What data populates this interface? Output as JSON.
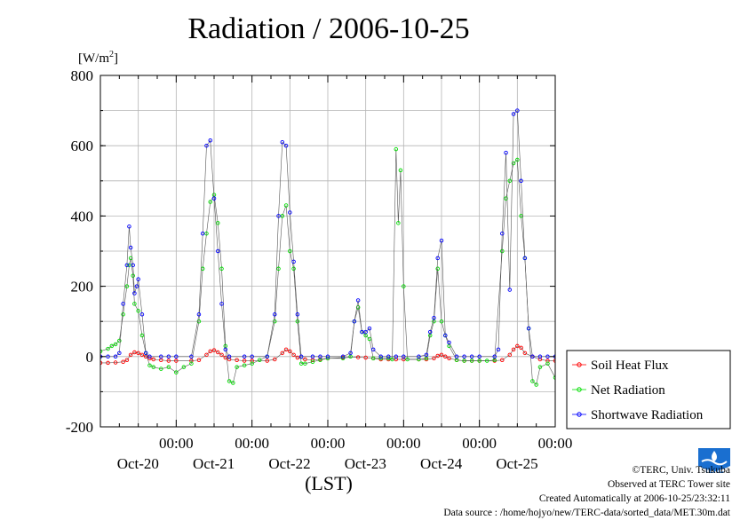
{
  "chart_data": {
    "type": "line",
    "title": "Radiation / 2006-10-25",
    "ylabel": "[W/m2]",
    "ylabel_base": "[W/m",
    "ylabel_sup": "2",
    "ylabel_close": "]",
    "xlabel": "(LST)",
    "ylim": [
      -200,
      800
    ],
    "y_ticks": [
      -200,
      0,
      200,
      400,
      600,
      800
    ],
    "x_range_days": [
      0,
      6
    ],
    "x_ticks": [
      {
        "time": "00:00",
        "date": "Oct-20",
        "day": 1
      },
      {
        "time": "00:00",
        "date": "Oct-21",
        "day": 2
      },
      {
        "time": "00:00",
        "date": "Oct-22",
        "day": 3
      },
      {
        "time": "00:00",
        "date": "Oct-23",
        "day": 4
      },
      {
        "time": "00:00",
        "date": "Oct-24",
        "day": 5
      },
      {
        "time": "00:00",
        "date": "Oct-25",
        "day": 6
      }
    ],
    "grid": true,
    "legend_position": "right",
    "series": [
      {
        "name": "Soil Heat Flux",
        "color": "#ff0000",
        "points": [
          [
            0.0,
            -18
          ],
          [
            0.1,
            -18
          ],
          [
            0.2,
            -17
          ],
          [
            0.3,
            -15
          ],
          [
            0.35,
            -10
          ],
          [
            0.4,
            5
          ],
          [
            0.45,
            12
          ],
          [
            0.5,
            10
          ],
          [
            0.55,
            5
          ],
          [
            0.6,
            0
          ],
          [
            0.65,
            -5
          ],
          [
            0.7,
            -8
          ],
          [
            0.8,
            -10
          ],
          [
            0.9,
            -12
          ],
          [
            1.0,
            -12
          ],
          [
            1.2,
            -12
          ],
          [
            1.3,
            -10
          ],
          [
            1.4,
            5
          ],
          [
            1.45,
            15
          ],
          [
            1.5,
            18
          ],
          [
            1.55,
            12
          ],
          [
            1.6,
            5
          ],
          [
            1.65,
            -3
          ],
          [
            1.7,
            -8
          ],
          [
            1.8,
            -10
          ],
          [
            1.9,
            -12
          ],
          [
            2.0,
            -12
          ],
          [
            2.2,
            -12
          ],
          [
            2.3,
            -8
          ],
          [
            2.4,
            10
          ],
          [
            2.45,
            20
          ],
          [
            2.5,
            15
          ],
          [
            2.55,
            5
          ],
          [
            2.6,
            -3
          ],
          [
            2.7,
            -8
          ],
          [
            2.8,
            -10
          ],
          [
            2.9,
            -8
          ],
          [
            3.0,
            -5
          ],
          [
            3.2,
            -3
          ],
          [
            3.4,
            -2
          ],
          [
            3.5,
            -3
          ],
          [
            3.6,
            -5
          ],
          [
            3.7,
            -8
          ],
          [
            3.8,
            -8
          ],
          [
            3.9,
            -8
          ],
          [
            4.0,
            -8
          ],
          [
            4.2,
            -8
          ],
          [
            4.3,
            -8
          ],
          [
            4.4,
            -5
          ],
          [
            4.45,
            2
          ],
          [
            4.5,
            5
          ],
          [
            4.55,
            0
          ],
          [
            4.6,
            -5
          ],
          [
            4.7,
            -10
          ],
          [
            4.8,
            -12
          ],
          [
            4.9,
            -12
          ],
          [
            5.0,
            -12
          ],
          [
            5.2,
            -12
          ],
          [
            5.3,
            -10
          ],
          [
            5.4,
            5
          ],
          [
            5.45,
            20
          ],
          [
            5.5,
            30
          ],
          [
            5.55,
            25
          ],
          [
            5.6,
            10
          ],
          [
            5.7,
            0
          ],
          [
            5.8,
            -8
          ],
          [
            5.9,
            -12
          ],
          [
            6.0,
            -12
          ]
        ]
      },
      {
        "name": "Net Radiation",
        "color": "#00dd00",
        "points": [
          [
            0.0,
            15
          ],
          [
            0.1,
            22
          ],
          [
            0.15,
            30
          ],
          [
            0.2,
            35
          ],
          [
            0.25,
            45
          ],
          [
            0.3,
            120
          ],
          [
            0.35,
            200
          ],
          [
            0.38,
            260
          ],
          [
            0.4,
            280
          ],
          [
            0.43,
            230
          ],
          [
            0.45,
            150
          ],
          [
            0.5,
            130
          ],
          [
            0.55,
            60
          ],
          [
            0.6,
            10
          ],
          [
            0.65,
            -25
          ],
          [
            0.7,
            -30
          ],
          [
            0.8,
            -35
          ],
          [
            0.9,
            -30
          ],
          [
            1.0,
            -45
          ],
          [
            1.1,
            -30
          ],
          [
            1.2,
            -20
          ],
          [
            1.3,
            100
          ],
          [
            1.35,
            250
          ],
          [
            1.4,
            350
          ],
          [
            1.45,
            440
          ],
          [
            1.5,
            460
          ],
          [
            1.55,
            380
          ],
          [
            1.6,
            250
          ],
          [
            1.65,
            30
          ],
          [
            1.7,
            -70
          ],
          [
            1.75,
            -75
          ],
          [
            1.8,
            -30
          ],
          [
            1.9,
            -25
          ],
          [
            2.0,
            -20
          ],
          [
            2.1,
            -10
          ],
          [
            2.2,
            0
          ],
          [
            2.3,
            100
          ],
          [
            2.35,
            250
          ],
          [
            2.4,
            400
          ],
          [
            2.45,
            430
          ],
          [
            2.5,
            300
          ],
          [
            2.55,
            250
          ],
          [
            2.6,
            100
          ],
          [
            2.65,
            -20
          ],
          [
            2.7,
            -20
          ],
          [
            2.8,
            -15
          ],
          [
            2.9,
            -10
          ],
          [
            3.0,
            -5
          ],
          [
            3.2,
            -5
          ],
          [
            3.3,
            0
          ],
          [
            3.35,
            100
          ],
          [
            3.4,
            140
          ],
          [
            3.45,
            70
          ],
          [
            3.5,
            60
          ],
          [
            3.55,
            50
          ],
          [
            3.6,
            -5
          ],
          [
            3.7,
            -5
          ],
          [
            3.8,
            -5
          ],
          [
            3.85,
            -8
          ],
          [
            3.9,
            590
          ],
          [
            3.93,
            380
          ],
          [
            3.96,
            530
          ],
          [
            4.0,
            200
          ],
          [
            4.05,
            -8
          ],
          [
            4.2,
            -8
          ],
          [
            4.3,
            -5
          ],
          [
            4.35,
            60
          ],
          [
            4.4,
            100
          ],
          [
            4.45,
            250
          ],
          [
            4.5,
            100
          ],
          [
            4.55,
            60
          ],
          [
            4.6,
            30
          ],
          [
            4.7,
            -10
          ],
          [
            4.8,
            -12
          ],
          [
            4.9,
            -12
          ],
          [
            5.0,
            -12
          ],
          [
            5.1,
            -12
          ],
          [
            5.2,
            -10
          ],
          [
            5.3,
            300
          ],
          [
            5.35,
            450
          ],
          [
            5.4,
            500
          ],
          [
            5.45,
            550
          ],
          [
            5.5,
            560
          ],
          [
            5.55,
            400
          ],
          [
            5.6,
            280
          ],
          [
            5.65,
            80
          ],
          [
            5.7,
            -70
          ],
          [
            5.75,
            -80
          ],
          [
            5.8,
            -30
          ],
          [
            5.9,
            -20
          ],
          [
            6.0,
            -60
          ]
        ]
      },
      {
        "name": "Shortwave Radiation",
        "color": "#0000ff",
        "points": [
          [
            0.0,
            0
          ],
          [
            0.1,
            0
          ],
          [
            0.2,
            0
          ],
          [
            0.25,
            10
          ],
          [
            0.3,
            150
          ],
          [
            0.35,
            260
          ],
          [
            0.38,
            370
          ],
          [
            0.4,
            310
          ],
          [
            0.43,
            260
          ],
          [
            0.45,
            180
          ],
          [
            0.48,
            200
          ],
          [
            0.5,
            220
          ],
          [
            0.55,
            120
          ],
          [
            0.6,
            10
          ],
          [
            0.65,
            0
          ],
          [
            0.8,
            0
          ],
          [
            0.9,
            0
          ],
          [
            1.0,
            0
          ],
          [
            1.2,
            0
          ],
          [
            1.3,
            120
          ],
          [
            1.35,
            350
          ],
          [
            1.4,
            600
          ],
          [
            1.45,
            615
          ],
          [
            1.5,
            450
          ],
          [
            1.55,
            300
          ],
          [
            1.6,
            150
          ],
          [
            1.65,
            20
          ],
          [
            1.7,
            0
          ],
          [
            1.9,
            0
          ],
          [
            2.0,
            0
          ],
          [
            2.2,
            0
          ],
          [
            2.3,
            120
          ],
          [
            2.35,
            400
          ],
          [
            2.4,
            610
          ],
          [
            2.45,
            600
          ],
          [
            2.5,
            410
          ],
          [
            2.55,
            270
          ],
          [
            2.6,
            120
          ],
          [
            2.65,
            0
          ],
          [
            2.8,
            0
          ],
          [
            2.9,
            0
          ],
          [
            3.0,
            0
          ],
          [
            3.2,
            0
          ],
          [
            3.3,
            10
          ],
          [
            3.35,
            100
          ],
          [
            3.4,
            160
          ],
          [
            3.45,
            70
          ],
          [
            3.5,
            70
          ],
          [
            3.55,
            80
          ],
          [
            3.6,
            20
          ],
          [
            3.7,
            0
          ],
          [
            3.8,
            0
          ],
          [
            3.9,
            0
          ],
          [
            4.0,
            0
          ],
          [
            4.2,
            0
          ],
          [
            4.3,
            5
          ],
          [
            4.35,
            70
          ],
          [
            4.4,
            110
          ],
          [
            4.45,
            280
          ],
          [
            4.5,
            330
          ],
          [
            4.55,
            60
          ],
          [
            4.6,
            40
          ],
          [
            4.7,
            0
          ],
          [
            4.8,
            0
          ],
          [
            4.9,
            0
          ],
          [
            5.0,
            0
          ],
          [
            5.2,
            0
          ],
          [
            5.25,
            20
          ],
          [
            5.3,
            350
          ],
          [
            5.35,
            580
          ],
          [
            5.4,
            190
          ],
          [
            5.45,
            690
          ],
          [
            5.5,
            700
          ],
          [
            5.55,
            500
          ],
          [
            5.6,
            280
          ],
          [
            5.65,
            80
          ],
          [
            5.7,
            0
          ],
          [
            5.8,
            0
          ],
          [
            5.9,
            0
          ],
          [
            6.0,
            0
          ]
        ]
      }
    ]
  },
  "credits": {
    "line1": "©TERC, Univ. Tsukuba",
    "line2": "Observed at TERC Tower site",
    "line3": "Created Automatically at 2006-10-25/23:32:11",
    "line4": "Data source : /home/hojyo/new/TERC-data/sorted_data/MET.30m.dat"
  },
  "logo": {
    "label": "TERC",
    "color": "#1a6fd0"
  }
}
